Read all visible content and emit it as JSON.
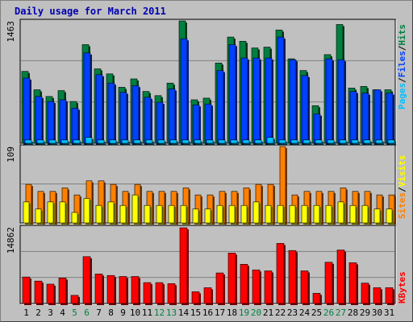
{
  "title": "Daily usage for March 2011",
  "colors": {
    "hits": "#008040",
    "files": "#0040ff",
    "pages": "#00c0ff",
    "visits": "#ffff00",
    "sites": "#ff8000",
    "kbytes": "#ff0000",
    "weekend_day": "#008040",
    "weekday": "#000000"
  },
  "chart_data": [
    {
      "type": "bar",
      "title": "Daily usage for March 2011",
      "series": [
        {
          "name": "Hits",
          "values": [
            860,
            640,
            560,
            630,
            500,
            1180,
            890,
            830,
            670,
            770,
            620,
            570,
            720,
            1463,
            520,
            540,
            960,
            1270,
            1220,
            1140,
            1150,
            1355,
            1010,
            870,
            450,
            1060,
            1420,
            660,
            680,
            640,
            640
          ]
        },
        {
          "name": "Files",
          "values": [
            780,
            560,
            500,
            520,
            420,
            1080,
            820,
            720,
            610,
            690,
            550,
            490,
            650,
            1250,
            460,
            470,
            870,
            1180,
            1020,
            1020,
            1020,
            1270,
            1000,
            810,
            350,
            1010,
            1000,
            620,
            600,
            640,
            600
          ]
        },
        {
          "name": "Pages",
          "values": [
            40,
            40,
            40,
            40,
            40,
            70,
            40,
            40,
            40,
            40,
            40,
            40,
            40,
            40,
            40,
            40,
            40,
            40,
            40,
            40,
            70,
            40,
            40,
            40,
            40,
            40,
            40,
            40,
            40,
            40,
            40
          ]
        }
      ],
      "categories": [
        "1",
        "2",
        "3",
        "4",
        "5",
        "6",
        "7",
        "8",
        "9",
        "10",
        "11",
        "12",
        "13",
        "14",
        "15",
        "16",
        "17",
        "18",
        "19",
        "20",
        "21",
        "22",
        "23",
        "24",
        "25",
        "26",
        "27",
        "28",
        "29",
        "30",
        "31"
      ],
      "ylim": [
        0,
        1463
      ],
      "max_label": "1463",
      "right_labels": [
        "Pages",
        "Files",
        "Hits"
      ]
    },
    {
      "type": "bar",
      "series": [
        {
          "name": "Visits",
          "values": [
            30,
            20,
            30,
            30,
            15,
            35,
            25,
            30,
            25,
            40,
            25,
            25,
            25,
            25,
            20,
            20,
            25,
            25,
            25,
            30,
            25,
            25,
            25,
            25,
            25,
            25,
            30,
            25,
            25,
            20,
            20
          ]
        },
        {
          "name": "Sites",
          "values": [
            55,
            45,
            45,
            50,
            40,
            60,
            60,
            55,
            45,
            55,
            45,
            45,
            45,
            50,
            40,
            40,
            45,
            45,
            50,
            55,
            55,
            109,
            40,
            45,
            45,
            45,
            50,
            45,
            45,
            40,
            40
          ]
        }
      ],
      "ylim": [
        0,
        109
      ],
      "max_label": "109",
      "right_labels": [
        "Sites",
        "Visits"
      ]
    },
    {
      "type": "bar",
      "series": [
        {
          "name": "KBytes",
          "values": [
            5200,
            4400,
            3800,
            5000,
            1600,
            9200,
            5800,
            5500,
            5300,
            5300,
            4100,
            4100,
            3900,
            14862,
            2300,
            3100,
            6000,
            9900,
            7700,
            6600,
            6400,
            11800,
            10400,
            6400,
            2000,
            8100,
            10500,
            8000,
            4000,
            3100,
            3100
          ]
        }
      ],
      "ylim": [
        0,
        14862
      ],
      "max_label": "14862",
      "right_labels": [
        "KBytes"
      ]
    }
  ]
}
